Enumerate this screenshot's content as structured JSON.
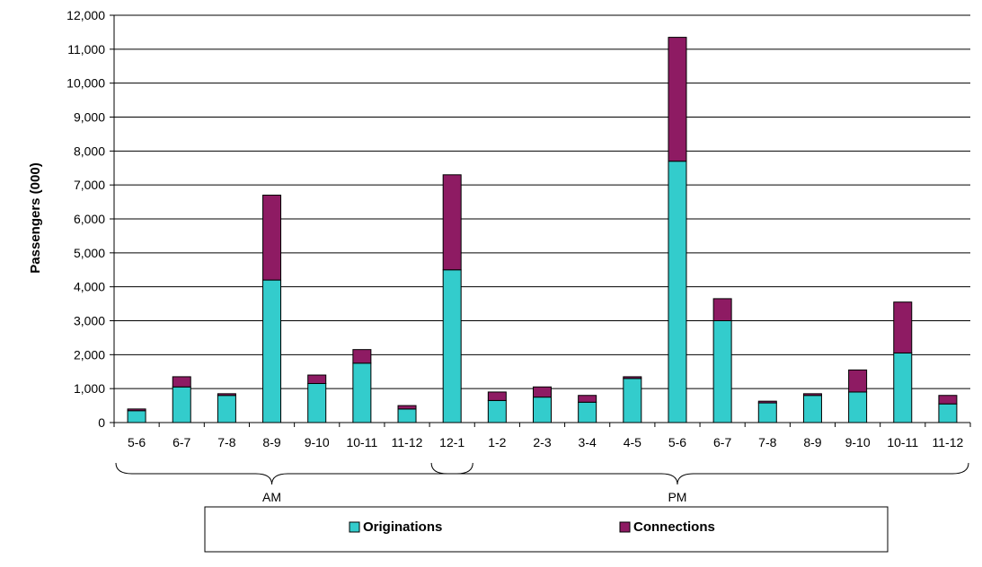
{
  "chart_data": {
    "type": "bar",
    "stacked": true,
    "categories": [
      "5-6",
      "6-7",
      "7-8",
      "8-9",
      "9-10",
      "10-11",
      "11-12",
      "12-1",
      "1-2",
      "2-3",
      "3-4",
      "4-5",
      "5-6",
      "6-7",
      "7-8",
      "8-9",
      "9-10",
      "10-11",
      "11-12"
    ],
    "groups": [
      {
        "label": "AM",
        "from": 0,
        "to": 7
      },
      {
        "label": "PM",
        "from": 7,
        "to": 18
      }
    ],
    "series": [
      {
        "name": "Originations",
        "color": "#33cccc",
        "values": [
          350,
          1050,
          800,
          4200,
          1150,
          1750,
          400,
          4500,
          650,
          750,
          600,
          1300,
          7700,
          3000,
          580,
          800,
          900,
          2050,
          550
        ]
      },
      {
        "name": "Connections",
        "color": "#8e1b63",
        "values": [
          50,
          300,
          50,
          2500,
          250,
          400,
          100,
          2800,
          250,
          300,
          200,
          50,
          3650,
          650,
          50,
          50,
          650,
          1500,
          250
        ]
      }
    ],
    "ylabel": "Passengers  (000)",
    "xlabel": "",
    "ylim": [
      0,
      12000
    ],
    "yticks": [
      0,
      1000,
      2000,
      3000,
      4000,
      5000,
      6000,
      7000,
      8000,
      9000,
      10000,
      11000,
      12000
    ],
    "ytick_labels": [
      "0",
      "1,000",
      "2,000",
      "3,000",
      "4,000",
      "5,000",
      "6,000",
      "7,000",
      "8,000",
      "9,000",
      "10,000",
      "11,000",
      "12,000"
    ],
    "grid": true,
    "legend_position": "bottom"
  }
}
